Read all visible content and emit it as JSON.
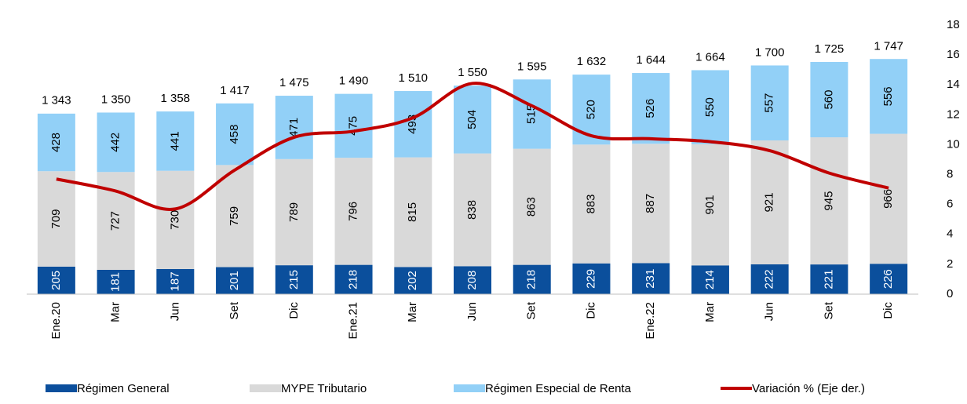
{
  "chart_data": {
    "type": "bar",
    "stacked": true,
    "categories": [
      "Ene.20",
      "Mar",
      "Jun",
      "Set",
      "Dic",
      "Ene.21",
      "Mar",
      "Jun",
      "Set",
      "Dic",
      "Ene.22",
      "Mar",
      "Jun",
      "Set",
      "Dic"
    ],
    "series": [
      {
        "name": "Régimen General",
        "color": "#0b4f9c",
        "values": [
          205,
          181,
          187,
          201,
          215,
          218,
          202,
          208,
          218,
          229,
          231,
          214,
          222,
          221,
          226
        ]
      },
      {
        "name": "MYPE Tributario",
        "color": "#d9d9d9",
        "values": [
          709,
          727,
          730,
          759,
          789,
          796,
          815,
          838,
          863,
          883,
          887,
          901,
          921,
          945,
          966
        ]
      },
      {
        "name": "Régimen Especial de Renta",
        "color": "#92d0f7",
        "values": [
          428,
          442,
          441,
          458,
          471,
          475,
          493,
          504,
          515,
          520,
          526,
          550,
          557,
          560,
          556
        ]
      },
      {
        "name": "Variación % (Eje der.)",
        "color": "#c00000",
        "axis": "y2",
        "values": [
          7.7,
          6.9,
          5.7,
          8.3,
          10.5,
          10.9,
          11.8,
          14.1,
          12.6,
          10.6,
          10.4,
          10.2,
          9.6,
          8.1,
          7.1
        ]
      }
    ],
    "totals": [
      1343,
      1350,
      1358,
      1417,
      1475,
      1490,
      1510,
      1550,
      1595,
      1632,
      1644,
      1664,
      1700,
      1725,
      1747
    ],
    "total_labels": [
      "1 343",
      "1 350",
      "1 358",
      "1 417",
      "1 475",
      "1 490",
      "1 510",
      "1 550",
      "1 595",
      "1 632",
      "1 644",
      "1 664",
      "1 700",
      "1 725",
      "1 747"
    ],
    "ylim": [
      0,
      2000
    ],
    "y2lim": [
      0,
      18
    ],
    "y2ticks": [
      0,
      2,
      4,
      6,
      8,
      10,
      12,
      14,
      16,
      18
    ]
  }
}
